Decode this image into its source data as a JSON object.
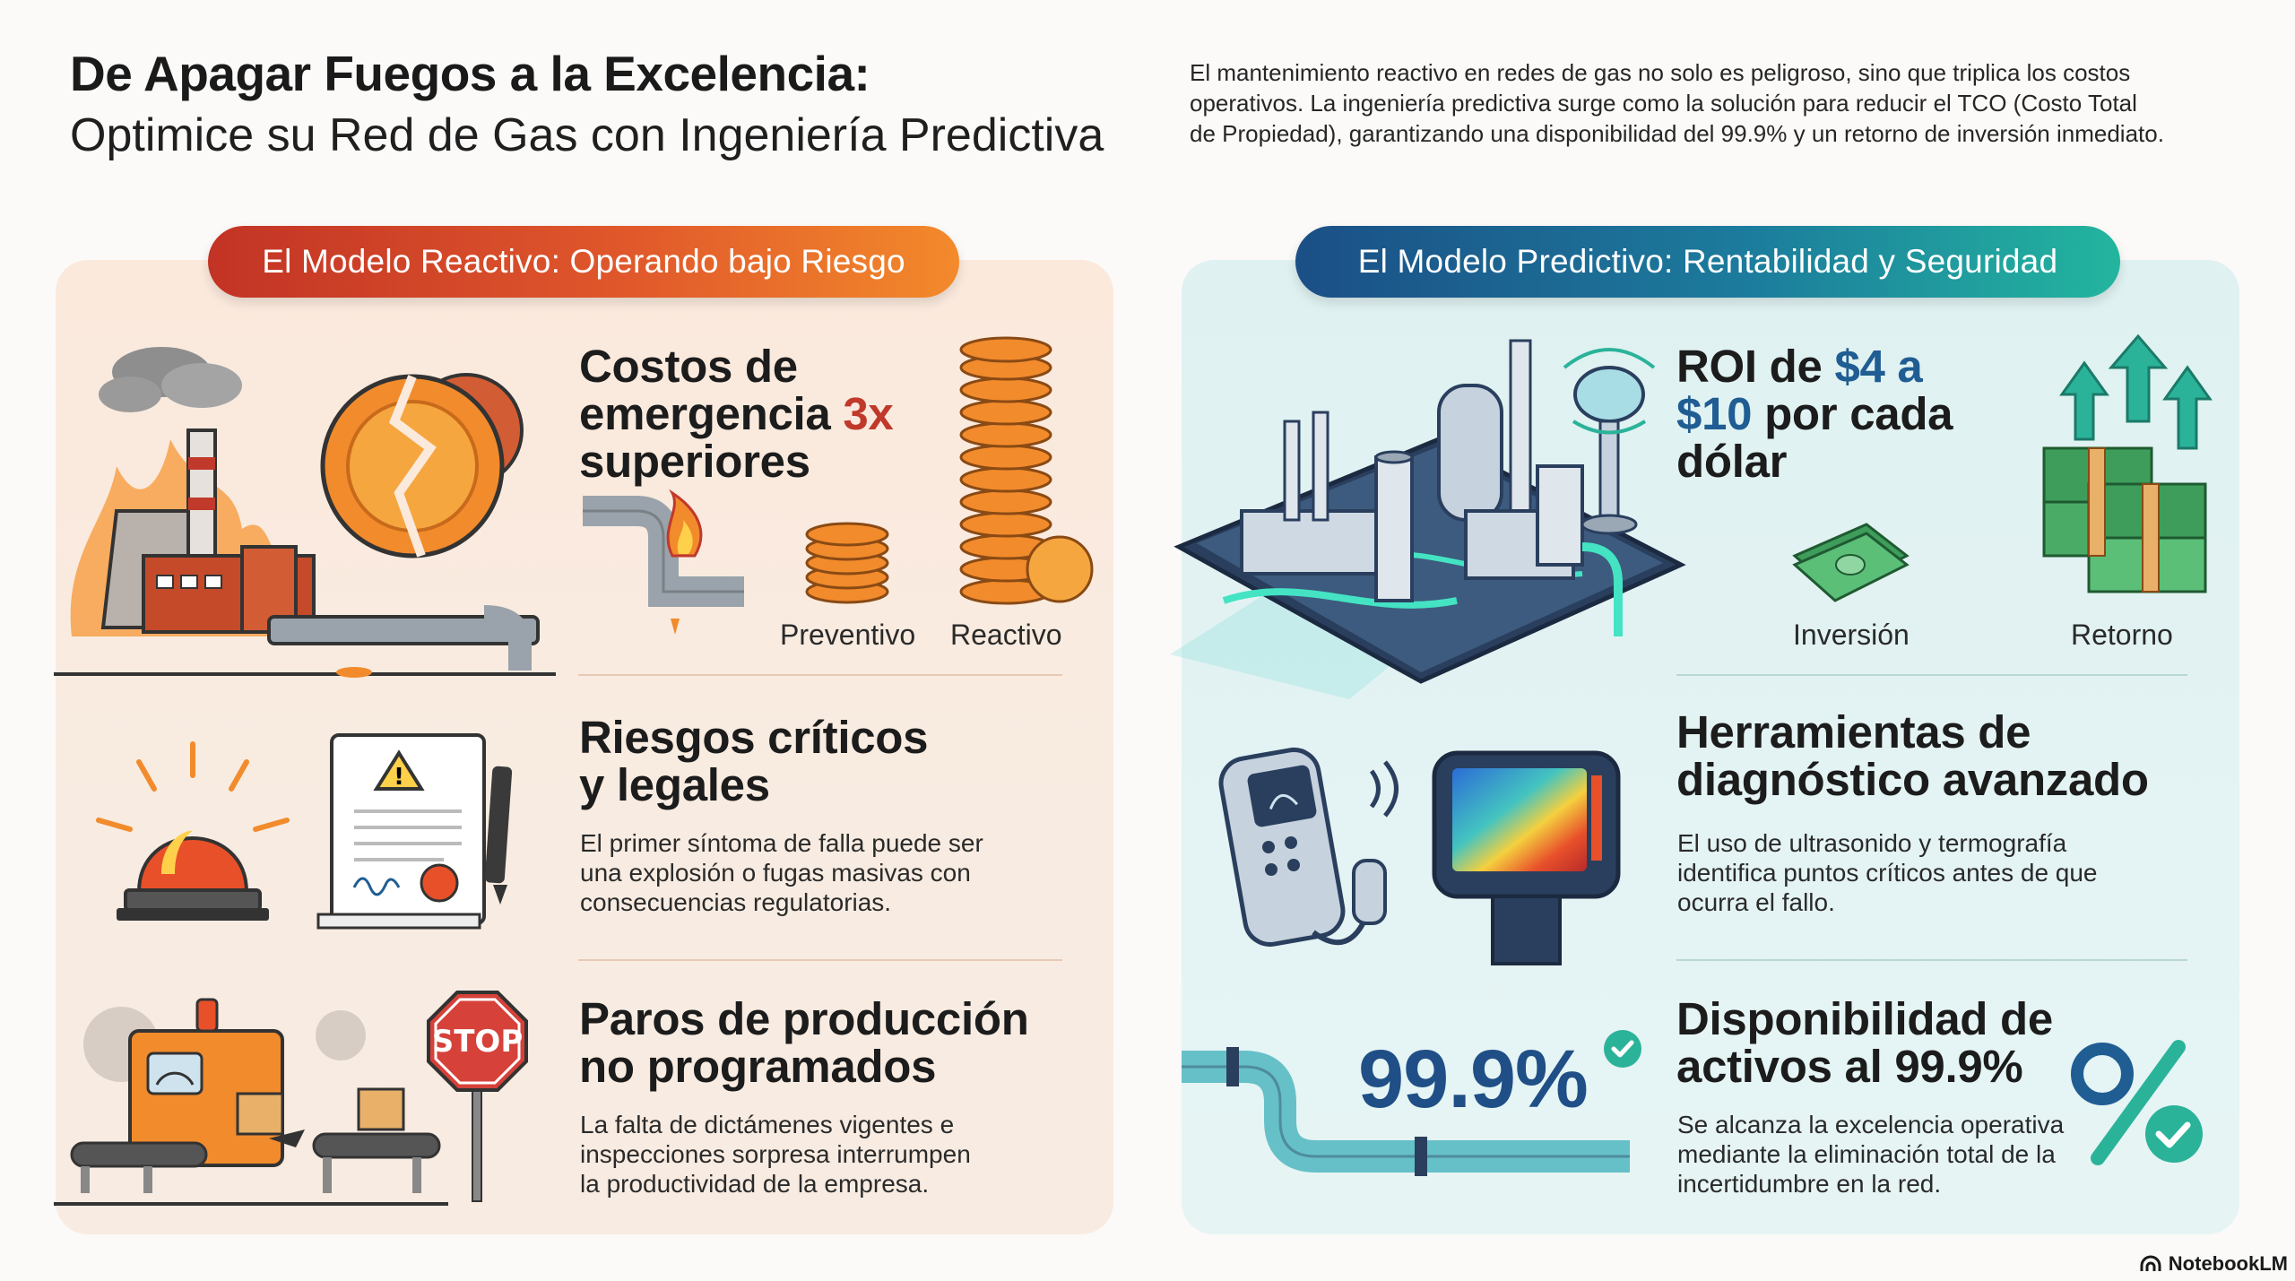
{
  "header": {
    "title": "De Apagar Fuegos a la Excelencia:",
    "subtitle": "Optimice su Red de Gas con Ingeniería Predictiva",
    "intro_lines": [
      "El mantenimiento reactivo en redes de gas no solo es peligroso, sino que triplica los costos",
      "operativos. La ingeniería predictiva surge como la solución para reducir el TCO (Costo Total",
      "de Propiedad), garantizando una disponibilidad del 99.9% y un retorno de inversión inmediato."
    ]
  },
  "left": {
    "pill": "El Modelo Reactivo: Operando bajo Riesgo",
    "costs": {
      "title_a": "Costos de",
      "title_b": "emergencia ",
      "title_highlight": "3x",
      "title_c": "superiores",
      "label_preventive": "Preventivo",
      "label_reactive": "Reactivo"
    },
    "risks": {
      "title_a": "Riesgos críticos",
      "title_b": "y legales",
      "body": [
        "El primer síntoma de falla puede ser",
        "una explosión o fugas masivas con",
        "consecuencias regulatorias."
      ]
    },
    "stops": {
      "title_a": "Paros de producción",
      "title_b": "no programados",
      "sign_text": "STOP",
      "body": [
        "La falta de dictámenes vigentes e",
        "inspecciones sorpresa interrumpen",
        "la productividad de la empresa."
      ]
    }
  },
  "right": {
    "pill": "El Modelo Predictivo: Rentabilidad y Seguridad",
    "roi": {
      "title_a": "ROI de ",
      "title_hl1": "$4 a",
      "title_hl2": "$10",
      "title_b": " por cada",
      "title_c": "dólar",
      "label_investment": "Inversión",
      "label_return": "Retorno"
    },
    "tools": {
      "title_a": "Herramientas de",
      "title_b": "diagnóstico avanzado",
      "body": [
        "El uso de ultrasonido y termografía",
        "identifica puntos críticos antes de que",
        "ocurra el fallo."
      ]
    },
    "availability": {
      "stat": "99.9%",
      "title_a": "Disponibilidad de",
      "title_b": "activos al 99.9%",
      "body": [
        "Se alcanza la excelencia operativa",
        "mediante la eliminación total de la",
        "incertidumbre en la red."
      ]
    }
  },
  "footer": {
    "logo": "NotebookLM"
  },
  "colors": {
    "reactive_accent": "#c0392b",
    "predictive_accent": "#1f5d93",
    "green_check": "#2bb39a"
  },
  "icons": [
    "burning-factory-icon",
    "coin-stack-icon",
    "alarm-light-icon",
    "legal-document-icon",
    "conveyor-machine-icon",
    "stop-sign-icon",
    "smart-plant-icon",
    "money-stack-icon",
    "ultrasound-device-icon",
    "thermal-camera-icon",
    "pipe-icon",
    "percent-check-icon"
  ]
}
